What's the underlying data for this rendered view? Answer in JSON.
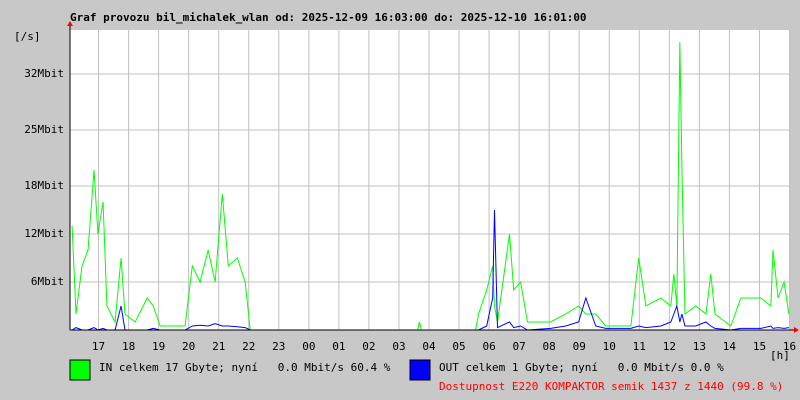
{
  "chart_data": {
    "type": "line",
    "title": "Graf provozu bil_michalek_wlan od: 2025-12-09 16:03:00 do: 2025-12-10 16:01:00",
    "y_label": "[/s]",
    "x_label": "[h]",
    "annotation": "Dostupnost E220 KOMPAKTOR semik 1437 z 1440 (99.8 %)",
    "annotation_color": "#ff0000",
    "grid": true,
    "xlim": [
      16.05,
      40.0167
    ],
    "xticks": [
      {
        "value": 17,
        "label": "17"
      },
      {
        "value": 18,
        "label": "18"
      },
      {
        "value": 19,
        "label": "19"
      },
      {
        "value": 20,
        "label": "20"
      },
      {
        "value": 21,
        "label": "21"
      },
      {
        "value": 22,
        "label": "22"
      },
      {
        "value": 23,
        "label": "23"
      },
      {
        "value": 24,
        "label": "00"
      },
      {
        "value": 25,
        "label": "01"
      },
      {
        "value": 26,
        "label": "02"
      },
      {
        "value": 27,
        "label": "03"
      },
      {
        "value": 28,
        "label": "04"
      },
      {
        "value": 29,
        "label": "05"
      },
      {
        "value": 30,
        "label": "06"
      },
      {
        "value": 31,
        "label": "07"
      },
      {
        "value": 32,
        "label": "08"
      },
      {
        "value": 33,
        "label": "09"
      },
      {
        "value": 34,
        "label": "10"
      },
      {
        "value": 35,
        "label": "11"
      },
      {
        "value": 36,
        "label": "12"
      },
      {
        "value": 37,
        "label": "13"
      },
      {
        "value": 38,
        "label": "14"
      },
      {
        "value": 39,
        "label": "15"
      },
      {
        "value": 40,
        "label": "16"
      }
    ],
    "ylim": [
      0,
      37.5
    ],
    "yticks": [
      {
        "value": 6,
        "label": "6Mbit"
      },
      {
        "value": 12,
        "label": "12Mbit"
      },
      {
        "value": 18,
        "label": "18Mbit"
      },
      {
        "value": 25,
        "label": "25Mbit"
      },
      {
        "value": 32,
        "label": "32Mbit"
      }
    ],
    "x": [
      16.12,
      16.25,
      16.45,
      16.65,
      16.85,
      16.98,
      17.15,
      17.28,
      17.55,
      17.75,
      17.88,
      18.22,
      18.62,
      18.82,
      19.05,
      19.88,
      20.12,
      20.38,
      20.65,
      20.88,
      21.12,
      21.32,
      21.62,
      21.88,
      22.05,
      27.62,
      27.68,
      27.75,
      29.55,
      29.65,
      29.92,
      30.12,
      30.18,
      30.28,
      30.68,
      30.82,
      31.05,
      31.28,
      32.05,
      32.55,
      32.98,
      33.22,
      33.55,
      33.88,
      34.72,
      34.98,
      35.22,
      35.72,
      36.05,
      36.15,
      36.25,
      36.35,
      36.42,
      36.52,
      36.88,
      37.22,
      37.38,
      37.52,
      38.05,
      38.38,
      39.05,
      39.38,
      39.45,
      39.62,
      39.82,
      39.98
    ],
    "series": [
      {
        "name": "IN celkem 17 Gbyte; nyní   0.0 Mbit/s 60.4 %",
        "color": "#00ff00",
        "values": [
          13,
          2,
          8,
          10,
          20,
          12,
          16,
          3,
          1,
          9,
          2,
          1,
          4,
          3,
          0.5,
          0.5,
          8,
          6,
          10,
          6,
          17,
          8,
          9,
          6,
          0,
          0,
          1,
          0,
          0,
          2,
          5,
          8,
          3,
          1,
          12,
          5,
          6,
          1,
          1,
          2,
          3,
          2,
          2,
          0.5,
          0.5,
          9,
          3,
          4,
          3,
          7,
          3,
          36,
          20,
          2,
          3,
          2,
          7,
          2,
          0.5,
          4,
          4,
          3,
          10,
          4,
          6,
          2
        ]
      },
      {
        "name": "OUT celkem 1 Gbyte; nyní   0.0 Mbit/s 0.0 %",
        "color": "#0000ff",
        "values": [
          0,
          0.3,
          0,
          0,
          0.3,
          0,
          0.2,
          0,
          0,
          3,
          0,
          0,
          0,
          0.2,
          0,
          0,
          0.5,
          0.6,
          0.5,
          0.8,
          0.5,
          0.5,
          0.4,
          0.3,
          0,
          0,
          0,
          0,
          0,
          0,
          0.5,
          4,
          15,
          0.3,
          1,
          0.3,
          0.5,
          0,
          0.2,
          0.5,
          1,
          4,
          0.5,
          0.2,
          0.2,
          0.5,
          0.3,
          0.5,
          1,
          2,
          3,
          1,
          2,
          0.5,
          0.5,
          1,
          0.5,
          0.2,
          0,
          0.2,
          0.2,
          0.5,
          0.2,
          0.3,
          0.2,
          0.3
        ]
      }
    ]
  }
}
